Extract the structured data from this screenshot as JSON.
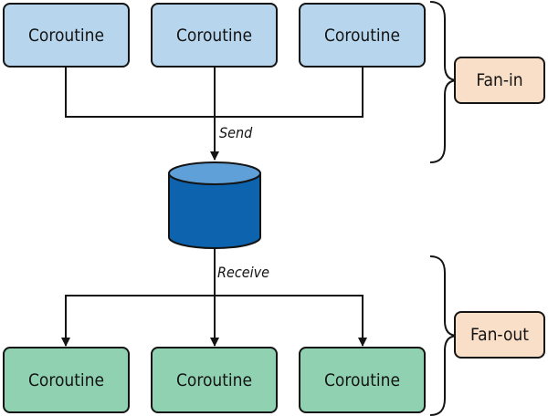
{
  "producers": [
    {
      "label": "Coroutine"
    },
    {
      "label": "Coroutine"
    },
    {
      "label": "Coroutine"
    }
  ],
  "consumers": [
    {
      "label": "Coroutine"
    },
    {
      "label": "Coroutine"
    },
    {
      "label": "Coroutine"
    }
  ],
  "edges": {
    "send_label": "Send",
    "receive_label": "Receive"
  },
  "groups": {
    "fan_in_label": "Fan-in",
    "fan_out_label": "Fan-out"
  },
  "colors": {
    "producer_fill": "#b7d6ed",
    "consumer_fill": "#8fd1b1",
    "group_fill": "#f9dfc7",
    "channel_body": "#0d63ad",
    "channel_top": "#5fa0d9",
    "stroke": "#141414"
  }
}
